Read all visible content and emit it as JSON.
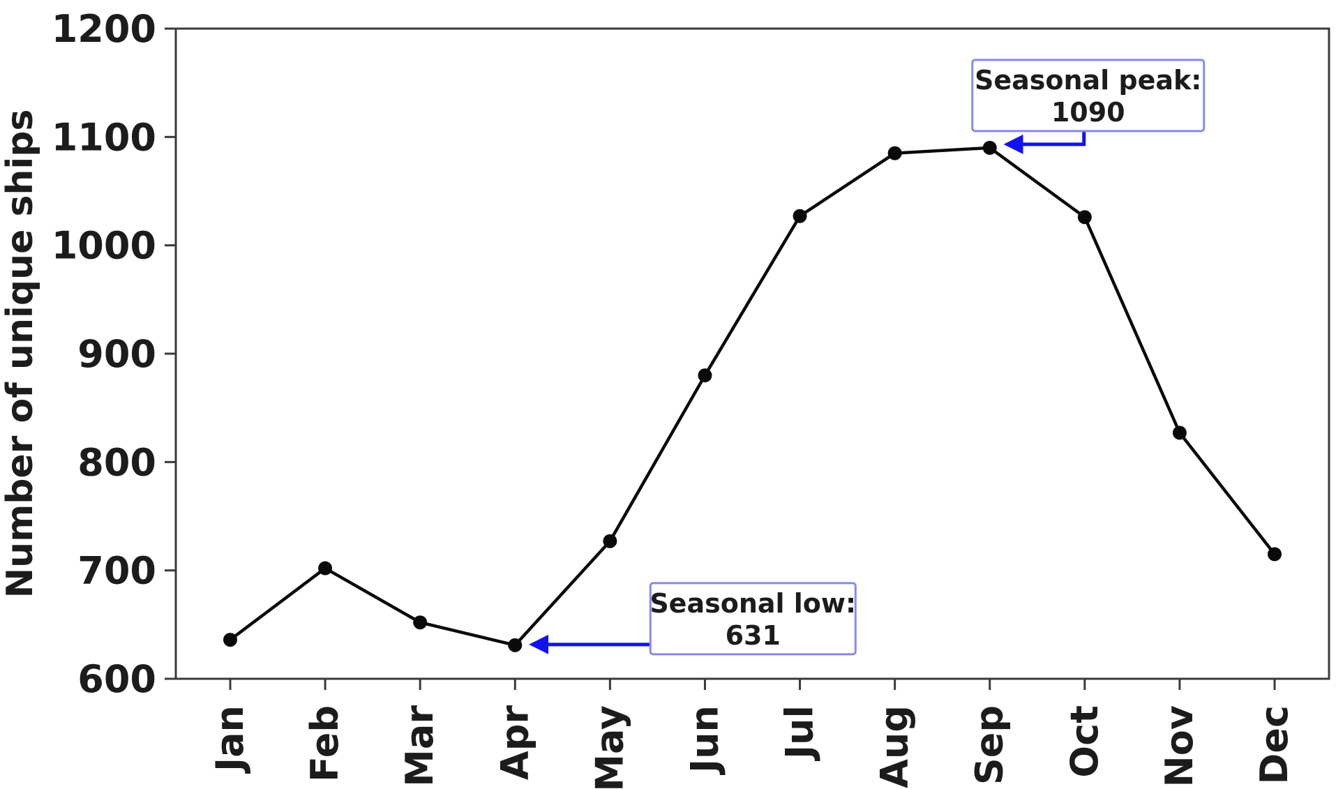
{
  "figure": {
    "background": "#ffffff",
    "aria_label": "Line chart of number of unique ships per month"
  },
  "chart_data": {
    "type": "line",
    "categories": [
      "Jan",
      "Feb",
      "Mar",
      "Apr",
      "May",
      "Jun",
      "Jul",
      "Aug",
      "Sep",
      "Oct",
      "Nov",
      "Dec"
    ],
    "series": [
      {
        "values": [
          636,
          702,
          652,
          631,
          727,
          880,
          1027,
          1085,
          1090,
          1026,
          827,
          715
        ],
        "color": "#0a0a0a",
        "marker": "circle"
      }
    ],
    "title": "",
    "xlabel": "",
    "ylabel": "Number of unique ships",
    "ylim": [
      600,
      1200
    ],
    "y_ticks": [
      600,
      700,
      800,
      900,
      1000,
      1100,
      1200
    ],
    "grid": false,
    "legend_position": "none",
    "axis_color": "#3a3a3a",
    "text_color": "#1c1c1c",
    "annotations": [
      {
        "id": "peak",
        "lines": [
          "Seasonal peak:",
          "1090"
        ],
        "target_category": "Sep",
        "target_value": 1090,
        "placement": "above",
        "box_border_color": "#8888f0",
        "box_fill_color": "#ffffff",
        "arrow_color": "#1212f0"
      },
      {
        "id": "low",
        "lines": [
          "Seasonal low:",
          "631"
        ],
        "target_category": "Apr",
        "target_value": 631,
        "placement": "right",
        "box_border_color": "#8888f0",
        "box_fill_color": "#ffffff",
        "arrow_color": "#1212f0"
      }
    ]
  }
}
